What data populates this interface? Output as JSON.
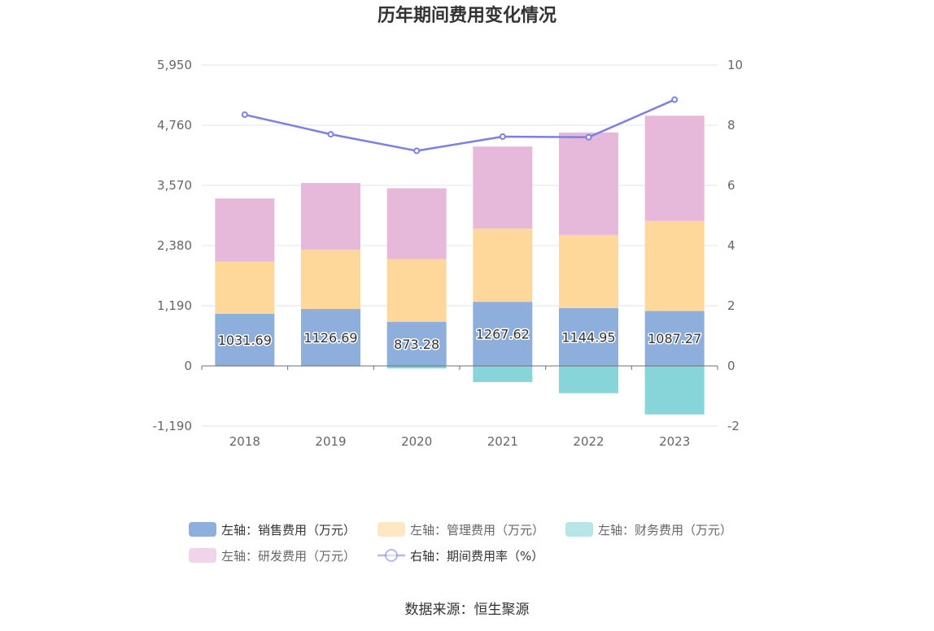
{
  "chart_data": {
    "type": "bar",
    "title": "历年期间费用变化情况",
    "categories": [
      "2018",
      "2019",
      "2020",
      "2021",
      "2022",
      "2023"
    ],
    "left_axis": {
      "ticks": [
        "5,950",
        "4,760",
        "3,570",
        "2,380",
        "1,190",
        "0",
        "-1,190"
      ],
      "ylim": [
        -1190,
        5950
      ]
    },
    "right_axis": {
      "ticks": [
        "10",
        "8",
        "6",
        "4",
        "2",
        "0",
        "-2"
      ],
      "ylim": [
        -2,
        10
      ]
    },
    "series": [
      {
        "name": "左轴：销售费用（万元）",
        "axis": "left",
        "kind": "stacked-bar",
        "color": "#8eaedc",
        "values": [
          1031.69,
          1126.69,
          873.28,
          1267.62,
          1144.95,
          1087.27
        ],
        "labels": [
          "1031.69",
          "1126.69",
          "873.28",
          "1267.62",
          "1144.95",
          "1087.27"
        ]
      },
      {
        "name": "左轴：管理费用（万元）",
        "axis": "left",
        "kind": "stacked-bar",
        "color": "#fed89b",
        "values": [
          1030,
          1170,
          1240,
          1450,
          1440,
          1780
        ]
      },
      {
        "name": "左轴：财务费用（万元）",
        "axis": "left",
        "kind": "stacked-bar",
        "color": "#87d5d8",
        "values": [
          -10,
          -10,
          -50,
          -320,
          -540,
          -960
        ]
      },
      {
        "name": "左轴：研发费用（万元）",
        "axis": "left",
        "kind": "stacked-bar",
        "color": "#e6b8d9",
        "values": [
          1250,
          1320,
          1400,
          1620,
          2030,
          2080
        ]
      },
      {
        "name": "右轴：期间费用率（%）",
        "axis": "right",
        "kind": "line",
        "color": "#7b7fe8",
        "values": [
          8.35,
          7.7,
          7.15,
          7.62,
          7.6,
          8.85
        ]
      }
    ],
    "grid": true,
    "legend": "bottom"
  },
  "source_text": "数据来源：恒生聚源"
}
